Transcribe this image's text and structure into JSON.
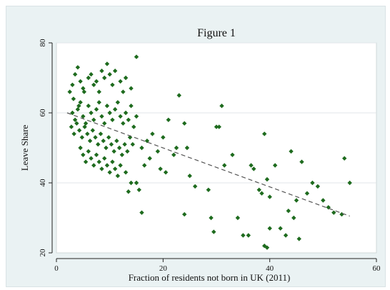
{
  "chart_data": {
    "type": "scatter",
    "title": "Figure 1",
    "xlabel": "Fraction of residents not born in UK (2011)",
    "ylabel": "Leave Share",
    "xlim": [
      0,
      60
    ],
    "ylim": [
      20,
      80
    ],
    "xticks": [
      0,
      20,
      40,
      60
    ],
    "yticks": [
      20,
      40,
      60,
      80
    ],
    "grid": true,
    "marker_color": "#1e6b1e",
    "trend_color": "#555555",
    "trend_line": {
      "x": [
        2,
        55
      ],
      "y": [
        60,
        30.5
      ]
    },
    "points": [
      [
        2.5,
        66
      ],
      [
        3.0,
        68
      ],
      [
        3.5,
        71
      ],
      [
        4.0,
        73
      ],
      [
        4.5,
        69
      ],
      [
        5.0,
        67
      ],
      [
        3.2,
        64
      ],
      [
        4.2,
        62
      ],
      [
        5.2,
        66
      ],
      [
        6.0,
        70
      ],
      [
        6.5,
        71
      ],
      [
        7.0,
        68
      ],
      [
        7.5,
        69
      ],
      [
        8.0,
        66
      ],
      [
        8.5,
        72
      ],
      [
        9.0,
        70
      ],
      [
        9.5,
        74
      ],
      [
        10.0,
        71
      ],
      [
        10.5,
        68
      ],
      [
        11.0,
        72
      ],
      [
        12.0,
        69
      ],
      [
        12.5,
        66
      ],
      [
        13.0,
        70
      ],
      [
        14.0,
        67
      ],
      [
        15.0,
        76
      ],
      [
        3.0,
        60
      ],
      [
        3.5,
        58
      ],
      [
        4.0,
        61
      ],
      [
        4.5,
        63
      ],
      [
        5.0,
        59
      ],
      [
        5.5,
        57
      ],
      [
        6.0,
        62
      ],
      [
        6.5,
        60
      ],
      [
        7.0,
        58
      ],
      [
        7.5,
        61
      ],
      [
        8.0,
        63
      ],
      [
        8.5,
        59
      ],
      [
        9.0,
        57
      ],
      [
        9.5,
        62
      ],
      [
        10.0,
        60
      ],
      [
        10.5,
        58
      ],
      [
        11.0,
        61
      ],
      [
        11.5,
        63
      ],
      [
        12.0,
        59
      ],
      [
        12.5,
        57
      ],
      [
        13.0,
        60
      ],
      [
        13.5,
        58
      ],
      [
        14.0,
        62
      ],
      [
        14.5,
        56
      ],
      [
        15.0,
        59
      ],
      [
        2.8,
        56
      ],
      [
        3.3,
        54
      ],
      [
        3.8,
        57
      ],
      [
        4.3,
        55
      ],
      [
        4.8,
        53
      ],
      [
        5.3,
        56
      ],
      [
        5.8,
        54
      ],
      [
        6.3,
        52
      ],
      [
        6.8,
        55
      ],
      [
        7.3,
        53
      ],
      [
        7.8,
        51
      ],
      [
        8.3,
        54
      ],
      [
        8.8,
        52
      ],
      [
        9.3,
        50
      ],
      [
        9.8,
        53
      ],
      [
        10.3,
        51
      ],
      [
        10.8,
        49
      ],
      [
        11.3,
        52
      ],
      [
        11.8,
        50
      ],
      [
        12.3,
        48
      ],
      [
        12.8,
        51
      ],
      [
        13.3,
        49
      ],
      [
        13.8,
        53
      ],
      [
        14.3,
        51
      ],
      [
        4.5,
        50
      ],
      [
        5.0,
        48
      ],
      [
        5.5,
        46
      ],
      [
        6.0,
        49
      ],
      [
        6.5,
        47
      ],
      [
        7.0,
        45
      ],
      [
        7.5,
        48
      ],
      [
        8.0,
        46
      ],
      [
        8.5,
        44
      ],
      [
        9.0,
        47
      ],
      [
        9.5,
        45
      ],
      [
        10.0,
        43
      ],
      [
        10.5,
        46
      ],
      [
        11.0,
        44
      ],
      [
        11.5,
        42
      ],
      [
        12.0,
        45
      ],
      [
        13.0,
        43
      ],
      [
        14.0,
        40
      ],
      [
        15.5,
        38
      ],
      [
        13.5,
        37.5
      ],
      [
        16.0,
        31.5
      ],
      [
        15.0,
        40
      ],
      [
        16.5,
        45
      ],
      [
        17.5,
        47
      ],
      [
        16.0,
        50
      ],
      [
        17.0,
        52
      ],
      [
        18.0,
        54
      ],
      [
        19.0,
        49
      ],
      [
        20.0,
        53
      ],
      [
        21.0,
        58
      ],
      [
        22.0,
        48
      ],
      [
        24.0,
        57
      ],
      [
        24.5,
        50
      ],
      [
        23.0,
        65
      ],
      [
        19.5,
        44
      ],
      [
        22.5,
        50
      ],
      [
        20.5,
        43
      ],
      [
        25.0,
        42
      ],
      [
        26.0,
        39
      ],
      [
        24.0,
        31
      ],
      [
        28.5,
        38
      ],
      [
        29.0,
        30
      ],
      [
        29.5,
        26
      ],
      [
        30.0,
        56
      ],
      [
        30.5,
        56
      ],
      [
        31.0,
        62
      ],
      [
        31.5,
        45
      ],
      [
        33.0,
        48
      ],
      [
        34.0,
        30
      ],
      [
        35.0,
        25
      ],
      [
        36.0,
        25
      ],
      [
        36.5,
        45
      ],
      [
        37.0,
        44
      ],
      [
        38.0,
        38
      ],
      [
        38.5,
        37
      ],
      [
        39.0,
        54
      ],
      [
        39.5,
        41
      ],
      [
        39.0,
        22
      ],
      [
        39.5,
        21.5
      ],
      [
        40.0,
        36
      ],
      [
        40.0,
        27
      ],
      [
        41.0,
        45
      ],
      [
        42.0,
        27
      ],
      [
        43.0,
        25
      ],
      [
        43.5,
        32
      ],
      [
        44.0,
        49
      ],
      [
        44.5,
        30
      ],
      [
        45.0,
        35
      ],
      [
        45.5,
        24
      ],
      [
        46.0,
        46
      ],
      [
        47.0,
        37
      ],
      [
        48.0,
        40
      ],
      [
        49.0,
        39
      ],
      [
        50.0,
        35
      ],
      [
        51.0,
        33
      ],
      [
        52.0,
        31.5
      ],
      [
        53.5,
        31
      ],
      [
        54.0,
        47
      ],
      [
        55.0,
        40
      ]
    ]
  }
}
